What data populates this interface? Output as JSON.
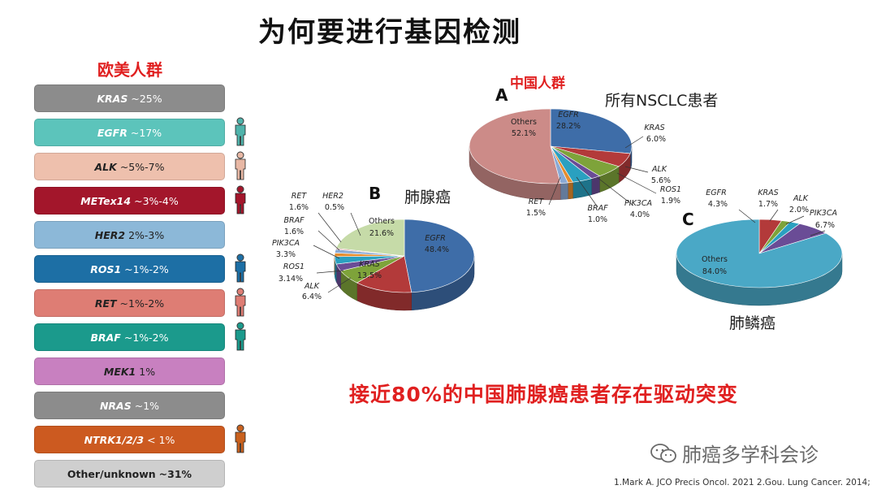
{
  "title": "为何要进行基因检测",
  "west": {
    "heading": "欧美人群",
    "bars": [
      {
        "gene": "KRAS",
        "value": "~25%",
        "color": "#8c8c8c",
        "person": null
      },
      {
        "gene": "EGFR",
        "value": "~17%",
        "color": "#5cc4bb",
        "person": "#4fb3ab"
      },
      {
        "gene": "ALK",
        "value": "~5%-7%",
        "color": "#eec0ad",
        "person": "#e8b8a5",
        "dark": true
      },
      {
        "gene": "METex14",
        "value": "~3%-4%",
        "color": "#a3162b",
        "person": "#a3162b"
      },
      {
        "gene": "HER2",
        "value": "2%-3%",
        "color": "#8cb8d8",
        "person": null,
        "dark": true
      },
      {
        "gene": "ROS1",
        "value": "~1%-2%",
        "color": "#1d6fa5",
        "person": "#1d6fa5"
      },
      {
        "gene": "RET",
        "value": "~1%-2%",
        "color": "#de7d74",
        "person": "#de7d74",
        "dark": true
      },
      {
        "gene": "BRAF",
        "value": "~1%-2%",
        "color": "#1b9a8c",
        "person": "#1b9a8c"
      },
      {
        "gene": "MEK1",
        "value": "1%",
        "color": "#c880c0",
        "person": null,
        "dark": true
      },
      {
        "gene": "NRAS",
        "value": "~1%",
        "color": "#8c8c8c",
        "person": null
      },
      {
        "gene": "NTRK1/2/3",
        "value": "< 1%",
        "color": "#cc5a20",
        "person": "#c9611e"
      },
      {
        "gene": "Other/unknown",
        "value": "~31%",
        "color": "#cfcfcf",
        "person": null,
        "dark": true,
        "plain": true
      }
    ]
  },
  "chart_data": [
    {
      "type": "pie",
      "panel": "A",
      "group_label": "中国人群",
      "title": "所有NSCLC患者",
      "categories": [
        "EGFR",
        "KRAS",
        "ALK",
        "ROS1",
        "PIK3CA",
        "BRAF",
        "RET",
        "Others"
      ],
      "values": [
        28.2,
        6.0,
        5.6,
        1.9,
        4.0,
        1.0,
        1.5,
        52.1
      ],
      "labels": [
        "28.2%",
        "6.0%",
        "5.6%",
        "1.9%",
        "4.0%",
        "1.0%",
        "1.5%",
        "52.1%"
      ],
      "colors": [
        "#3e6da8",
        "#b33a3a",
        "#7ea33a",
        "#6a4c96",
        "#2aa0c0",
        "#e58c2d",
        "#8aaad6",
        "#cc8b88"
      ]
    },
    {
      "type": "pie",
      "panel": "B",
      "title": "肺腺癌",
      "categories": [
        "EGFR",
        "KRAS",
        "ALK",
        "ROS1",
        "PIK3CA",
        "BRAF",
        "RET",
        "HER2",
        "Others"
      ],
      "values": [
        48.4,
        13.5,
        6.4,
        3.14,
        3.3,
        1.6,
        1.6,
        0.5,
        21.6
      ],
      "labels": [
        "48.4%",
        "13.5%",
        "6.4%",
        "3.14%",
        "3.3%",
        "1.6%",
        "1.6%",
        "0.5%",
        "21.6%"
      ],
      "colors": [
        "#3e6da8",
        "#b33a3a",
        "#7ea33a",
        "#6a4c96",
        "#2aa0c0",
        "#e58c2d",
        "#8aaad6",
        "#cc8b88",
        "#c6dba8"
      ]
    },
    {
      "type": "pie",
      "panel": "C",
      "title": "肺鳞癌",
      "categories": [
        "EGFR",
        "KRAS",
        "ALK",
        "PIK3CA",
        "Others"
      ],
      "values": [
        4.3,
        1.7,
        2.0,
        6.7,
        84.0
      ],
      "labels": [
        "4.3%",
        "1.7%",
        "2.0%",
        "6.7%",
        "84.0%"
      ],
      "colors": [
        "#b33a3a",
        "#7ea33a",
        "#2aa0c0",
        "#6a4c96",
        "#4aa8c6"
      ]
    }
  ],
  "conclusion": "接近80%的中国肺腺癌患者存在驱动突变",
  "watermark": "肺癌多学科会诊",
  "citation": "1.Mark A. JCO Precis Oncol. 2021 2.Gou. Lung Cancer. 2014;"
}
